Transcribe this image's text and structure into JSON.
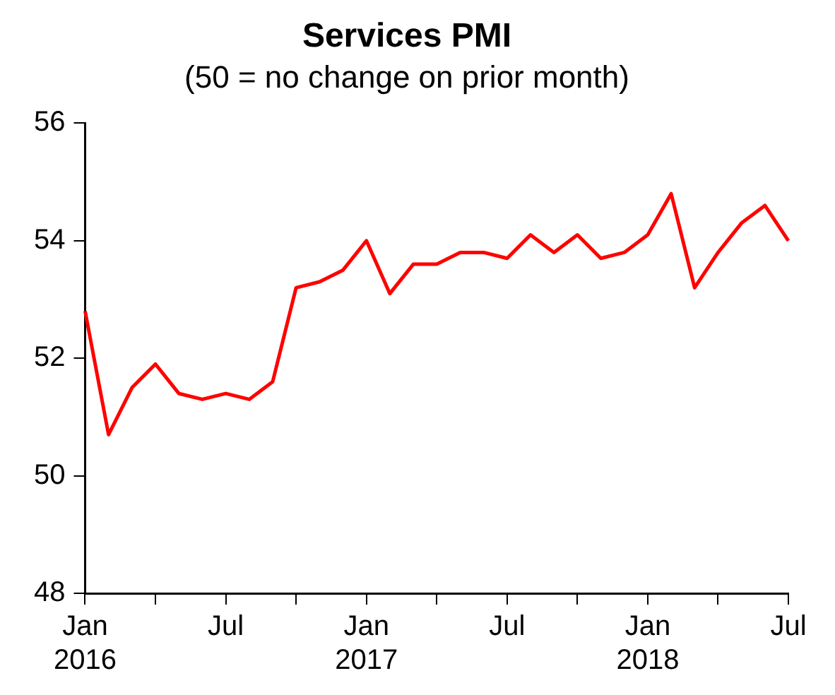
{
  "chart_data": {
    "type": "line",
    "title": "Services PMI",
    "subtitle": "(50 = no change on prior month)",
    "categories": [
      "Jan 2016",
      null,
      null,
      null,
      null,
      null,
      "Jul",
      null,
      null,
      null,
      null,
      null,
      "Jan 2017",
      null,
      null,
      null,
      null,
      null,
      "Jul",
      null,
      null,
      null,
      null,
      null,
      "Jan 2018",
      null,
      null,
      null,
      null,
      null,
      "Jul"
    ],
    "series": [
      {
        "color": "#ff0000",
        "values": [
          52.8,
          50.7,
          51.5,
          51.9,
          51.4,
          51.3,
          51.4,
          51.3,
          51.6,
          53.2,
          53.3,
          53.5,
          54.0,
          53.1,
          53.6,
          53.6,
          53.8,
          53.8,
          53.7,
          54.1,
          53.8,
          54.1,
          53.7,
          53.8,
          54.1,
          54.8,
          53.2,
          53.8,
          54.3,
          54.6,
          54.0
        ]
      }
    ],
    "ylim": [
      48,
      56
    ],
    "yticks": [
      48,
      50,
      52,
      54,
      56
    ],
    "grid": false,
    "legend": false,
    "marker": "none",
    "line_style": "solid"
  }
}
